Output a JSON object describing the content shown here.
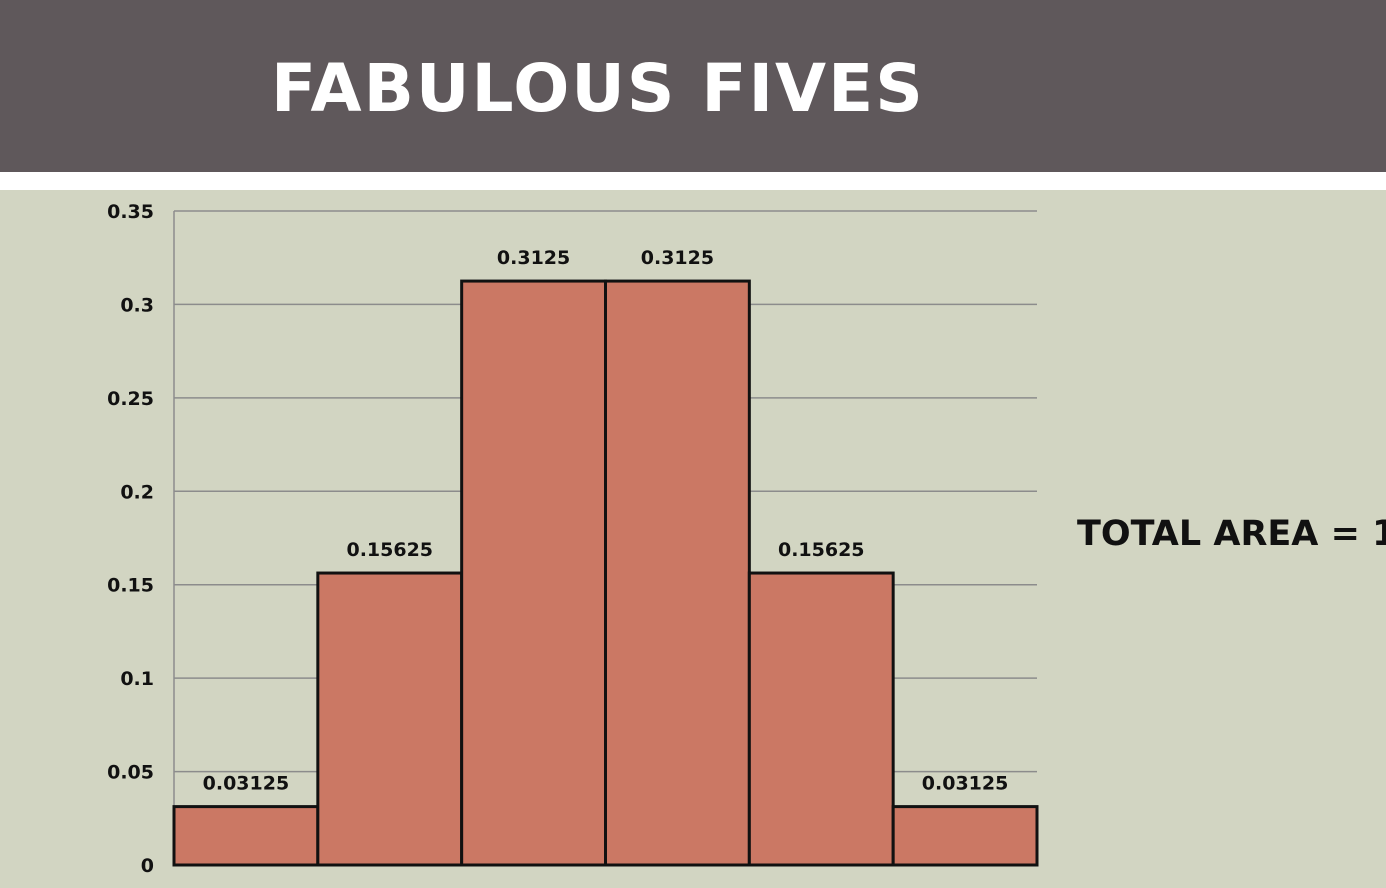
{
  "slide": {
    "title": "FABULOUS FIVES",
    "annotation": "TOTAL AREA = 1"
  },
  "colors": {
    "title_bar": "#5f585b",
    "background": "#d2d5c2",
    "bar_fill": "#cb7864",
    "bar_stroke": "#111111",
    "gridline": "#8c8c8c"
  },
  "chart_data": {
    "type": "bar",
    "title": "",
    "xlabel": "",
    "ylabel": "",
    "categories": [
      "",
      "",
      "",
      "",
      "",
      ""
    ],
    "values": [
      0.03125,
      0.15625,
      0.3125,
      0.3125,
      0.15625,
      0.03125
    ],
    "data_labels": [
      "0.03125",
      "0.15625",
      "0.3125",
      "0.3125",
      "0.15625",
      "0.03125"
    ],
    "ylim": [
      0,
      0.35
    ],
    "y_ticks": [
      0,
      0.05,
      0.1,
      0.15,
      0.2,
      0.25,
      0.3,
      0.35
    ],
    "y_tick_labels": [
      "0",
      "0.05",
      "0.1",
      "0.15",
      "0.2",
      "0.25",
      "0.3",
      "0.35"
    ],
    "grid": true,
    "legend": "none"
  }
}
